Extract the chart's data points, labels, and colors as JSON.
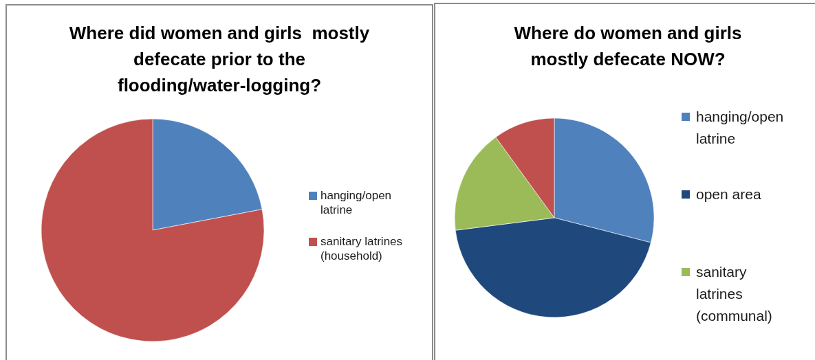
{
  "chart_data": [
    {
      "type": "pie",
      "title": "Where did women and girls  mostly defecate prior to the flooding/water-logging?",
      "categories": [
        "hanging/open latrine",
        "sanitary latrines (household)"
      ],
      "values": [
        22,
        78
      ],
      "colors": [
        "#4f81bd",
        "#c0504d"
      ],
      "legend": "right"
    },
    {
      "type": "pie",
      "title": "Where do women and girls mostly defecate NOW?",
      "categories": [
        "hanging/open latrine",
        "open area",
        "sanitary latrines (communal)",
        null
      ],
      "values": [
        29,
        44,
        17,
        10
      ],
      "colors": [
        "#4f81bd",
        "#1f497d",
        "#9bbb59",
        "#c0504d"
      ],
      "legend": "right"
    }
  ]
}
